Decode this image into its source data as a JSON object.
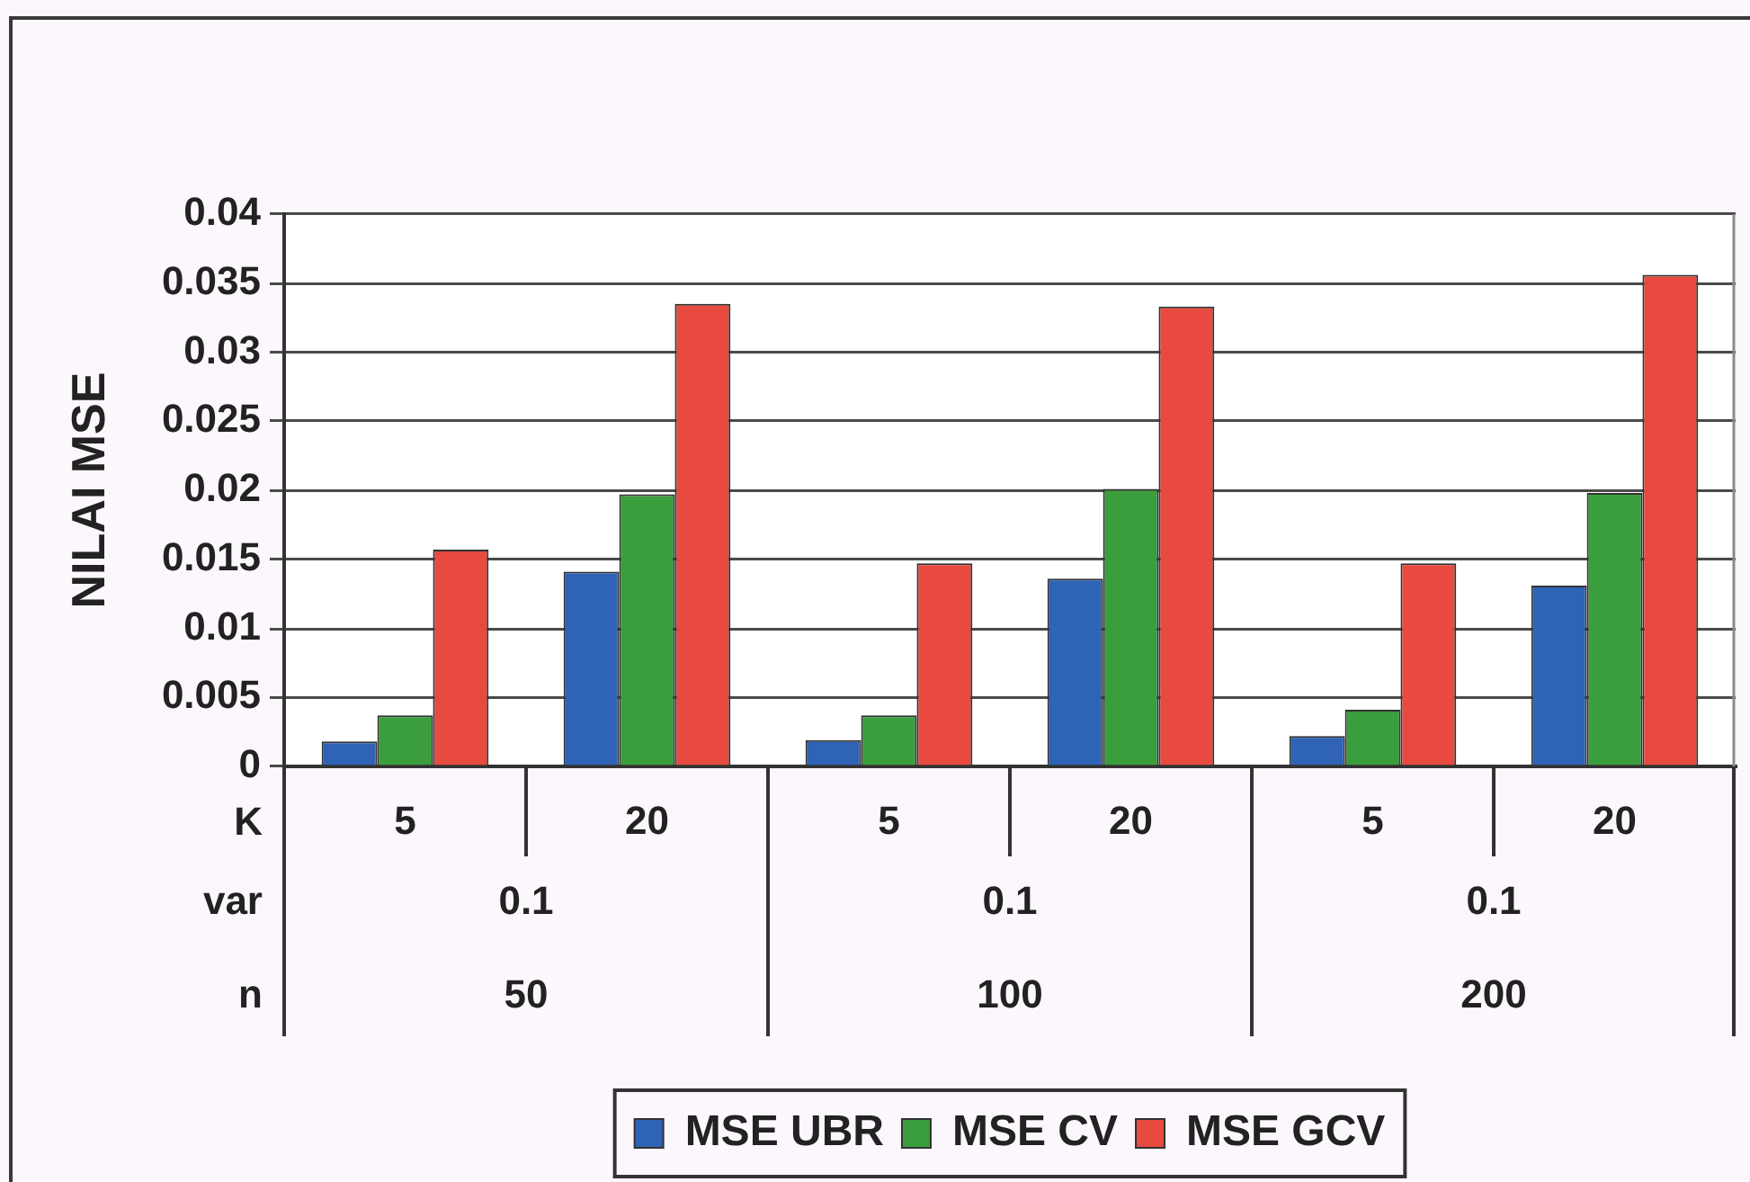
{
  "chart_data": {
    "type": "bar",
    "ylabel": "NILAI MSE",
    "categories": [
      "5",
      "20",
      "5",
      "20",
      "5",
      "20"
    ],
    "series": [
      {
        "name": "MSE UBR",
        "color": "#2e63b6",
        "values": [
          0.0018,
          0.0141,
          0.0019,
          0.0136,
          0.0022,
          0.0131
        ]
      },
      {
        "name": "MSE CV",
        "color": "#3a9e3c",
        "values": [
          0.0037,
          0.0197,
          0.0037,
          0.0201,
          0.0041,
          0.0198
        ]
      },
      {
        "name": "MSE GCV",
        "color": "#e84a40",
        "values": [
          0.0157,
          0.0335,
          0.0147,
          0.0333,
          0.0147,
          0.0356
        ]
      }
    ],
    "ylim": [
      0,
      0.04
    ],
    "yticks": [
      0,
      0.005,
      0.01,
      0.015,
      0.02,
      0.025,
      0.03,
      0.035,
      0.04
    ],
    "grid": "y",
    "legend": "bottom",
    "annotations": [
      "K",
      "var",
      "0.1",
      "0.1",
      "0.1",
      "n",
      "50",
      "100",
      "200"
    ]
  }
}
